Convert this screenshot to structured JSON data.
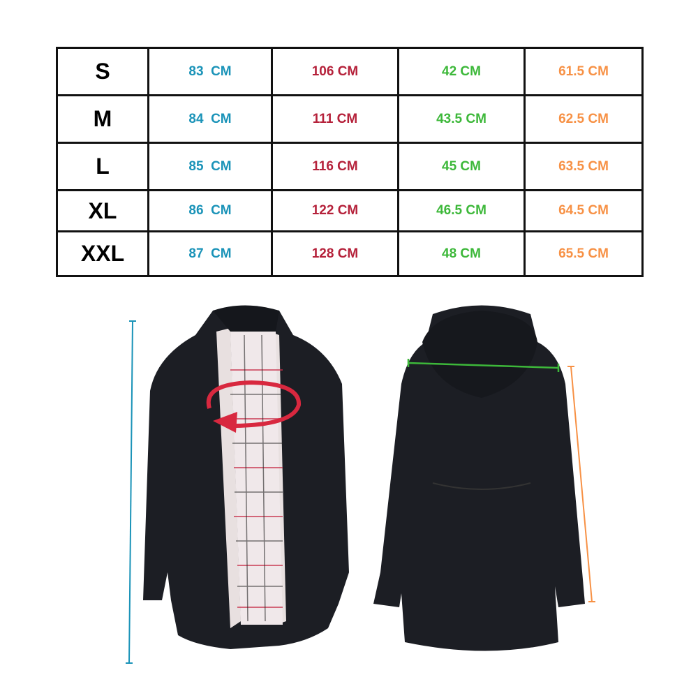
{
  "colors": {
    "col1": "#1a93b8",
    "col2": "#b5213a",
    "col3": "#3db83a",
    "col4": "#f79145",
    "border": "#111111",
    "jacket": "#1c1e24"
  },
  "size_table": {
    "rows": [
      {
        "size": "S",
        "values": [
          "83  CM",
          "106 CM",
          "42 CM",
          "61.5 CM"
        ]
      },
      {
        "size": "M",
        "values": [
          "84  CM",
          "111 CM",
          "43.5 CM",
          "62.5 CM"
        ]
      },
      {
        "size": "L",
        "values": [
          "85  CM",
          "116 CM",
          "45 CM",
          "63.5 CM"
        ]
      },
      {
        "size": "XL",
        "values": [
          "86  CM",
          "122 CM",
          "46.5 CM",
          "64.5 CM"
        ]
      },
      {
        "size": "XXL",
        "values": [
          "87  CM",
          "128 CM",
          "48 CM",
          "65.5 CM"
        ]
      }
    ]
  },
  "illustration": {
    "front": "front-jacket-image",
    "back": "back-jacket-image",
    "markers": [
      "length-line",
      "chest-arrow",
      "shoulder-line",
      "sleeve-line"
    ]
  }
}
